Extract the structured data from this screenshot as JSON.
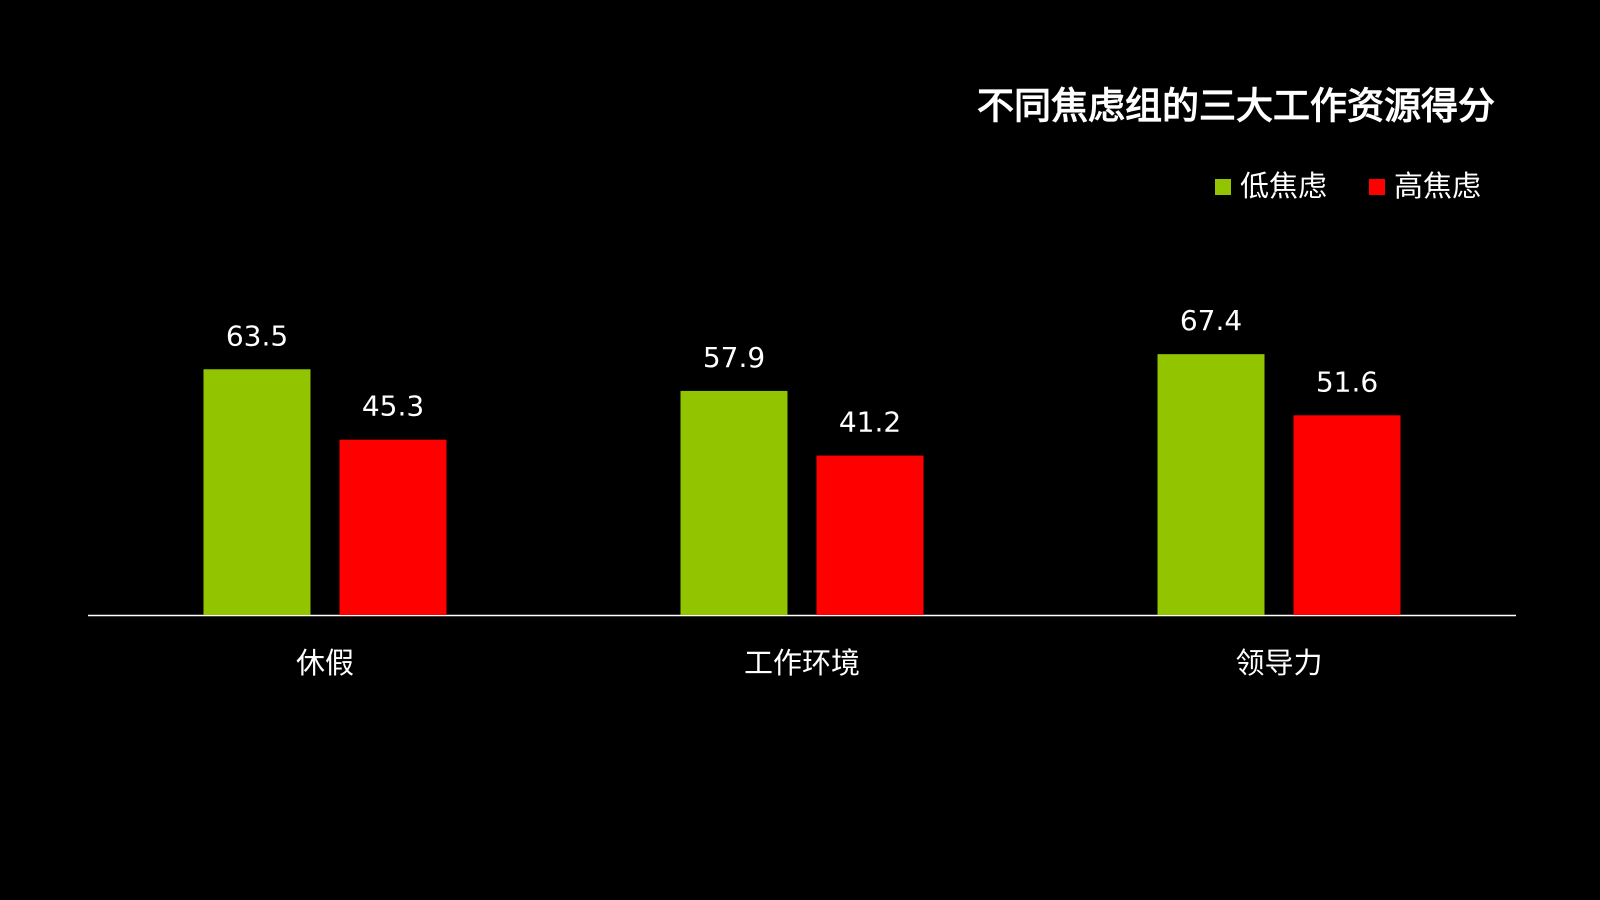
{
  "chart_data": {
    "type": "bar",
    "title": "不同焦虑组的三大工作资源得分",
    "categories": [
      "休假",
      "工作环境",
      "领导力"
    ],
    "series": [
      {
        "name": "低焦虑",
        "color": "#92c400",
        "values": [
          63.5,
          57.9,
          67.4
        ]
      },
      {
        "name": "高焦虑",
        "color": "#ff0000",
        "values": [
          45.3,
          41.2,
          51.6
        ]
      }
    ],
    "legend": "top-right"
  }
}
